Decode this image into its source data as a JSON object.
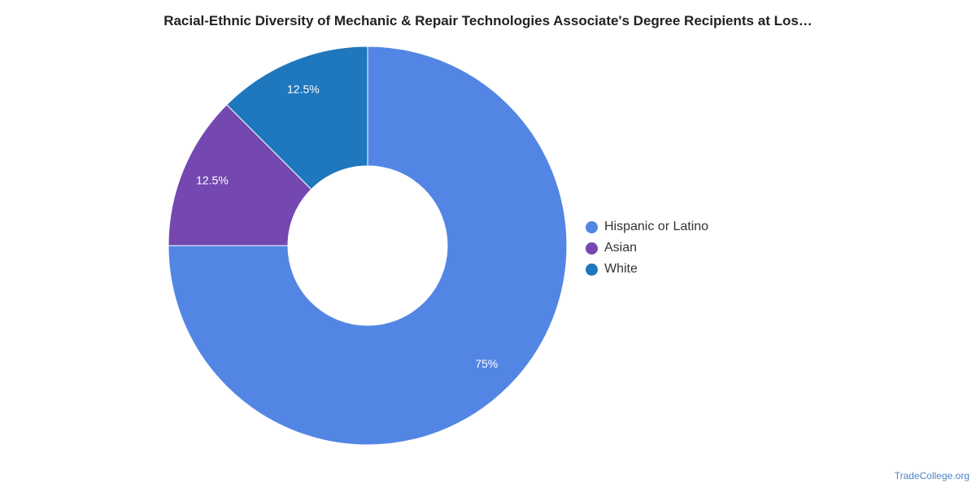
{
  "chart_data": {
    "type": "pie",
    "title": "Racial-Ethnic Diversity of Mechanic & Repair Technologies Associate's Degree Recipients at Los…",
    "categories": [
      "Hispanic or Latino",
      "Asian",
      "White"
    ],
    "values": [
      75,
      12.5,
      12.5
    ],
    "labels": [
      "75%",
      "12.5%",
      "12.5%"
    ],
    "colors": [
      "#5386e4",
      "#7448b0",
      "#1f77bd"
    ],
    "legend_position": "right"
  },
  "legend": [
    {
      "label": "Hispanic or Latino",
      "color": "#5386e4"
    },
    {
      "label": "Asian",
      "color": "#7448b0"
    },
    {
      "label": "White",
      "color": "#1f77bd"
    }
  ],
  "footer": {
    "source": "TradeCollege.org"
  }
}
